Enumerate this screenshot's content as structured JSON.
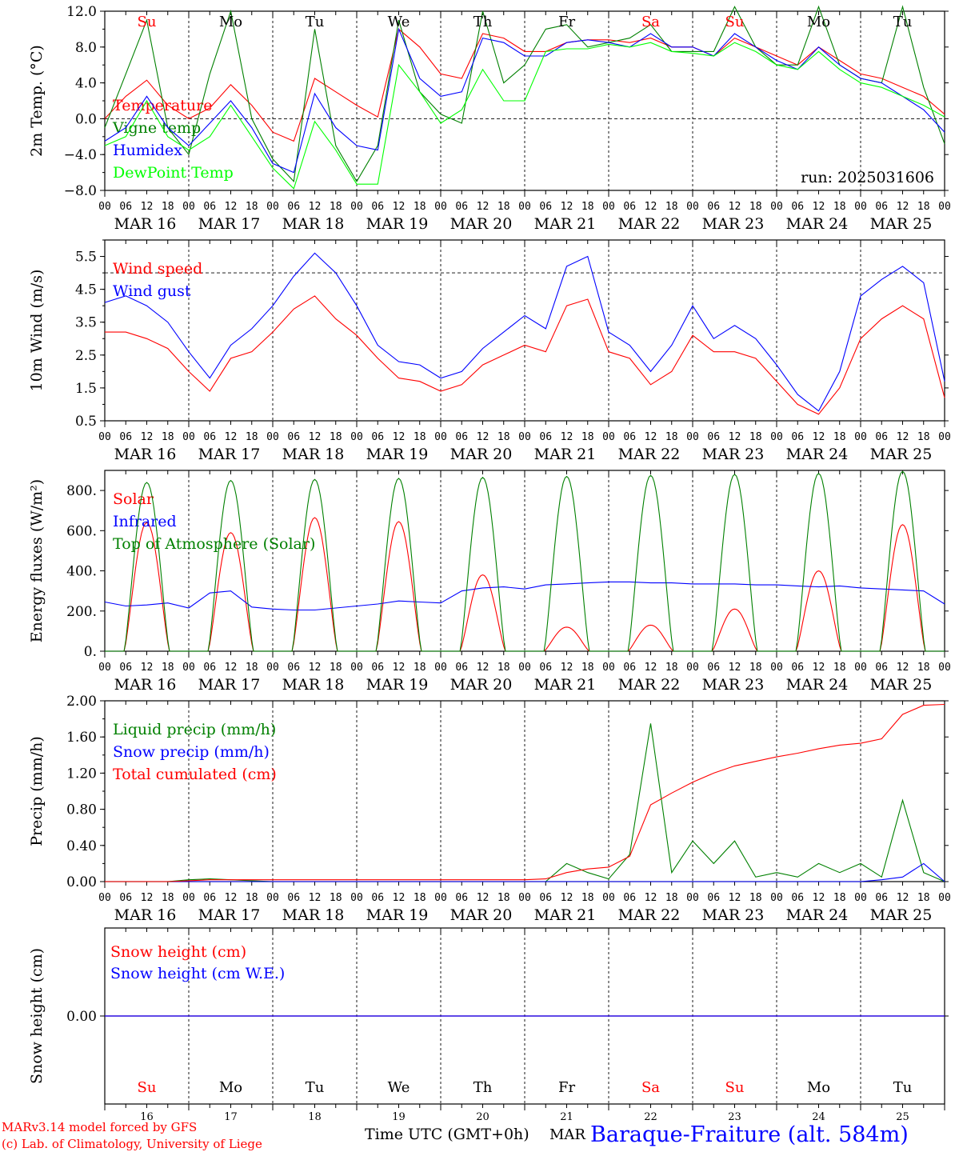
{
  "run_label": "run: 2025031606",
  "footer": {
    "model": "MARv3.14 model forced by GFS",
    "lab": "(c) Lab. of Climatology, University of Liege",
    "time_label": "Time UTC (GMT+0h)",
    "month": "MAR",
    "station": "Baraque-Fraiture (alt. 584m)"
  },
  "days": {
    "names": [
      "Su",
      "Mo",
      "Tu",
      "We",
      "Th",
      "Fr",
      "Sa",
      "Su",
      "Mo",
      "Tu"
    ],
    "name_colors": [
      "#ff0000",
      "#000000",
      "#000000",
      "#000000",
      "#000000",
      "#000000",
      "#ff0000",
      "#ff0000",
      "#000000",
      "#000000"
    ],
    "dates": [
      "MAR 16",
      "MAR 17",
      "MAR 18",
      "MAR 19",
      "MAR 20",
      "MAR 21",
      "MAR 22",
      "MAR 23",
      "MAR 24",
      "MAR 25"
    ],
    "numbers": [
      "16",
      "17",
      "18",
      "19",
      "20",
      "21",
      "22",
      "23",
      "24",
      "25"
    ],
    "hour_labels": [
      "00",
      "06",
      "12",
      "18"
    ],
    "final_hour": "00"
  },
  "chart_data": [
    {
      "type": "line",
      "ylabel": "2m Temp. (°C)",
      "ylim": [
        -8,
        12
      ],
      "yticks": [
        "12.0",
        "8.0",
        "4.0",
        "0.0",
        "−4.0",
        "−8.0"
      ],
      "ytick_values": [
        12,
        8,
        4,
        0,
        -4,
        -8
      ],
      "ref_line": 0,
      "x_hours": [
        0,
        6,
        12,
        18,
        24,
        30,
        36,
        42,
        48,
        54,
        60,
        66,
        72,
        78,
        84,
        90,
        96,
        102,
        108,
        114,
        120,
        126,
        132,
        138,
        144,
        150,
        156,
        162,
        168,
        174,
        180,
        186,
        192,
        198,
        204,
        210,
        216,
        222,
        228,
        234,
        240
      ],
      "series": [
        {
          "name": "Temperature",
          "color": "#ff0000",
          "values": [
            0.0,
            2.5,
            4.3,
            1.5,
            0.0,
            1.2,
            3.8,
            1.5,
            -1.5,
            -2.5,
            4.5,
            3.0,
            1.5,
            0.2,
            10.0,
            8.0,
            5.0,
            4.5,
            9.5,
            9.0,
            7.5,
            7.5,
            8.5,
            8.8,
            8.8,
            8.5,
            9.0,
            8.0,
            8.0,
            7.0,
            9.0,
            8.0,
            7.0,
            6.0,
            8.0,
            6.5,
            5.0,
            4.5,
            3.5,
            2.5,
            0.5
          ]
        },
        {
          "name": "Vigne temp",
          "color": "#008000",
          "values": [
            -1.0,
            5.0,
            11.0,
            -1.0,
            -4.0,
            5.0,
            12.0,
            0.0,
            -4.5,
            -7.0,
            10.0,
            -3.0,
            -7.0,
            -3.0,
            11.0,
            3.0,
            0.5,
            -0.5,
            12.0,
            4.0,
            6.0,
            10.0,
            10.5,
            8.0,
            8.5,
            9.0,
            10.5,
            7.5,
            7.5,
            7.5,
            12.5,
            8.0,
            6.0,
            6.0,
            12.5,
            6.0,
            4.5,
            4.0,
            12.5,
            3.5,
            -2.8
          ]
        },
        {
          "name": "Humidex",
          "color": "#0000ff",
          "values": [
            -2.5,
            -1.0,
            2.5,
            -1.0,
            -3.0,
            -0.5,
            2.0,
            -1.0,
            -5.0,
            -6.0,
            2.8,
            -1.0,
            -3.0,
            -3.5,
            10.0,
            4.5,
            2.5,
            3.0,
            9.0,
            8.5,
            7.0,
            7.0,
            8.5,
            8.8,
            8.5,
            8.0,
            9.5,
            8.0,
            8.0,
            7.0,
            9.5,
            8.0,
            6.5,
            5.5,
            8.0,
            6.0,
            4.5,
            4.0,
            2.5,
            1.0,
            -1.5
          ]
        },
        {
          "name": "DewPoint Temp",
          "color": "#00ff00",
          "values": [
            -3.0,
            -2.0,
            2.0,
            -2.0,
            -3.5,
            -2.0,
            1.5,
            -2.0,
            -5.5,
            -7.8,
            -0.3,
            -3.5,
            -7.3,
            -7.3,
            6.0,
            3.0,
            -0.5,
            1.0,
            5.5,
            2.0,
            2.0,
            7.5,
            7.8,
            7.8,
            8.3,
            8.0,
            8.5,
            7.5,
            7.3,
            7.0,
            8.5,
            7.5,
            6.0,
            5.5,
            7.5,
            5.5,
            4.0,
            3.5,
            2.5,
            1.5,
            0.2
          ]
        }
      ]
    },
    {
      "type": "line",
      "ylabel": "10m Wind (m/s)",
      "ylim": [
        0.5,
        6.0
      ],
      "yticks": [
        "5.5",
        "4.5",
        "3.5",
        "2.5",
        "1.5",
        "0.5"
      ],
      "ytick_values": [
        5.5,
        4.5,
        3.5,
        2.5,
        1.5,
        0.5
      ],
      "ref_line": 5,
      "x_hours": [
        0,
        6,
        12,
        18,
        24,
        30,
        36,
        42,
        48,
        54,
        60,
        66,
        72,
        78,
        84,
        90,
        96,
        102,
        108,
        114,
        120,
        126,
        132,
        138,
        144,
        150,
        156,
        162,
        168,
        174,
        180,
        186,
        192,
        198,
        204,
        210,
        216,
        222,
        228,
        234,
        240
      ],
      "series": [
        {
          "name": "Wind speed",
          "color": "#ff0000",
          "values": [
            3.2,
            3.2,
            3.0,
            2.7,
            2.0,
            1.4,
            2.4,
            2.6,
            3.2,
            3.9,
            4.3,
            3.6,
            3.1,
            2.4,
            1.8,
            1.7,
            1.4,
            1.6,
            2.2,
            2.5,
            2.8,
            2.6,
            4.0,
            4.2,
            2.6,
            2.4,
            1.6,
            2.0,
            3.1,
            2.6,
            2.6,
            2.4,
            1.7,
            1.0,
            0.7,
            1.5,
            3.0,
            3.6,
            4.0,
            3.6,
            1.2
          ]
        },
        {
          "name": "Wind gust",
          "color": "#0000ff",
          "values": [
            4.1,
            4.3,
            4.0,
            3.5,
            2.6,
            1.8,
            2.8,
            3.3,
            4.0,
            4.9,
            5.6,
            5.0,
            4.0,
            2.8,
            2.3,
            2.2,
            1.8,
            2.0,
            2.7,
            3.2,
            3.7,
            3.3,
            5.2,
            5.5,
            3.2,
            2.8,
            2.0,
            2.8,
            4.0,
            3.0,
            3.4,
            3.0,
            2.2,
            1.3,
            0.8,
            2.0,
            4.3,
            4.8,
            5.2,
            4.7,
            1.7
          ]
        }
      ]
    },
    {
      "type": "line",
      "ylabel": "Energy fluxes (W/m²)",
      "ylim": [
        0,
        900
      ],
      "yticks": [
        "800.",
        "600.",
        "400.",
        "200.",
        "0."
      ],
      "ytick_values": [
        800,
        600,
        400,
        200,
        0
      ],
      "series": [
        {
          "name": "Solar",
          "color": "#ff0000",
          "peaks": [
            640,
            590,
            665,
            645,
            380,
            120,
            130,
            210,
            400,
            630
          ]
        },
        {
          "name": "Infrared",
          "color": "#0000ff",
          "x_hours": [
            0,
            6,
            12,
            18,
            24,
            30,
            36,
            42,
            48,
            54,
            60,
            66,
            72,
            78,
            84,
            90,
            96,
            102,
            108,
            114,
            120,
            126,
            132,
            138,
            144,
            150,
            156,
            162,
            168,
            174,
            180,
            186,
            192,
            198,
            204,
            210,
            216,
            222,
            228,
            234,
            240
          ],
          "values": [
            245,
            225,
            230,
            240,
            215,
            290,
            300,
            220,
            210,
            205,
            205,
            215,
            225,
            235,
            250,
            245,
            240,
            300,
            315,
            320,
            310,
            330,
            335,
            340,
            345,
            345,
            340,
            340,
            335,
            335,
            335,
            330,
            330,
            325,
            320,
            325,
            315,
            310,
            305,
            300,
            235
          ]
        },
        {
          "name": "Top of Atmosphere (Solar)",
          "color": "#008000",
          "peaks": [
            840,
            850,
            855,
            860,
            865,
            870,
            875,
            880,
            885,
            895
          ]
        }
      ]
    },
    {
      "type": "line",
      "ylabel": "Precip (mm/h)",
      "ylim": [
        0,
        2.0
      ],
      "yticks": [
        "2.00",
        "1.60",
        "1.20",
        "0.80",
        "0.40",
        "0.00"
      ],
      "ytick_values": [
        2.0,
        1.6,
        1.2,
        0.8,
        0.4,
        0.0
      ],
      "x_hours": [
        0,
        6,
        12,
        18,
        24,
        30,
        36,
        42,
        48,
        54,
        60,
        66,
        72,
        78,
        84,
        90,
        96,
        102,
        108,
        114,
        120,
        126,
        132,
        138,
        144,
        150,
        156,
        162,
        168,
        174,
        180,
        186,
        192,
        198,
        204,
        210,
        216,
        222,
        228,
        234,
        240
      ],
      "series": [
        {
          "name": "Liquid precip (mm/h)",
          "color": "#008000",
          "values": [
            0,
            0,
            0,
            0,
            0.02,
            0.03,
            0.02,
            0.01,
            0,
            0,
            0,
            0,
            0,
            0,
            0,
            0,
            0,
            0,
            0,
            0,
            0,
            0,
            0.2,
            0.1,
            0.03,
            0.3,
            1.75,
            0.1,
            0.45,
            0.2,
            0.45,
            0.05,
            0.1,
            0.05,
            0.2,
            0.1,
            0.2,
            0.05,
            0.9,
            0.1,
            0.0
          ]
        },
        {
          "name": "Snow precip (mm/h)",
          "color": "#0000ff",
          "values": [
            0,
            0,
            0,
            0,
            0,
            0,
            0,
            0,
            0,
            0,
            0,
            0,
            0,
            0,
            0,
            0,
            0,
            0,
            0,
            0,
            0,
            0,
            0,
            0,
            0,
            0,
            0,
            0,
            0,
            0,
            0,
            0,
            0,
            0,
            0,
            0,
            0,
            0.02,
            0.05,
            0.2,
            0.0
          ]
        },
        {
          "name": "Total cumulated (cm)",
          "color": "#ff0000",
          "values": [
            0,
            0,
            0,
            0,
            0.01,
            0.02,
            0.02,
            0.02,
            0.02,
            0.02,
            0.02,
            0.02,
            0.02,
            0.02,
            0.02,
            0.02,
            0.02,
            0.02,
            0.02,
            0.02,
            0.02,
            0.03,
            0.1,
            0.14,
            0.16,
            0.28,
            0.85,
            0.98,
            1.1,
            1.2,
            1.28,
            1.33,
            1.38,
            1.42,
            1.47,
            1.51,
            1.53,
            1.58,
            1.85,
            1.95,
            1.96
          ]
        }
      ]
    },
    {
      "type": "line",
      "ylabel": "Snow height (cm)",
      "ylim": [
        -1,
        1
      ],
      "yticks": [
        "0.00"
      ],
      "ytick_values": [
        0
      ],
      "x_hours": [
        0,
        240
      ],
      "series": [
        {
          "name": "Snow height (cm)",
          "color": "#ff0000",
          "values": [
            0,
            0
          ]
        },
        {
          "name": "Snow height (cm W.E.)",
          "color": "#0000ff",
          "values": [
            0,
            0
          ]
        }
      ]
    }
  ]
}
